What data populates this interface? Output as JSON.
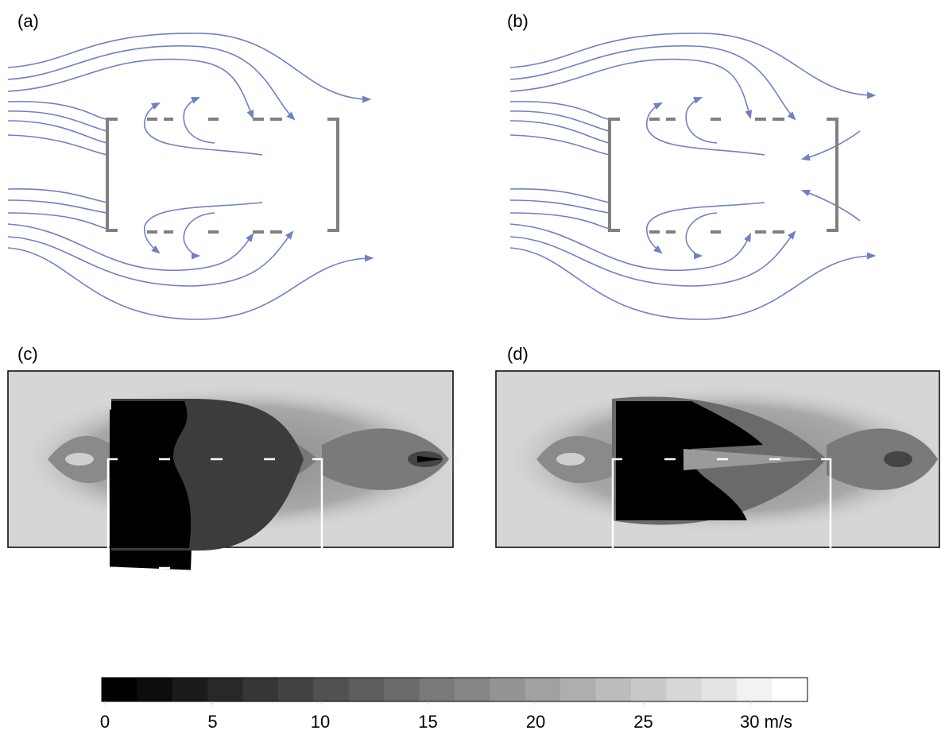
{
  "panels": [
    {
      "label": "(a)"
    },
    {
      "label": "(b)"
    },
    {
      "label": "(c)"
    },
    {
      "label": "(d)"
    }
  ],
  "colorbar": {
    "range": [
      0,
      30
    ],
    "ticks": [
      0,
      5,
      10,
      15,
      20,
      25,
      {
        "value": 30,
        "label": "30 m/s"
      }
    ]
  }
}
